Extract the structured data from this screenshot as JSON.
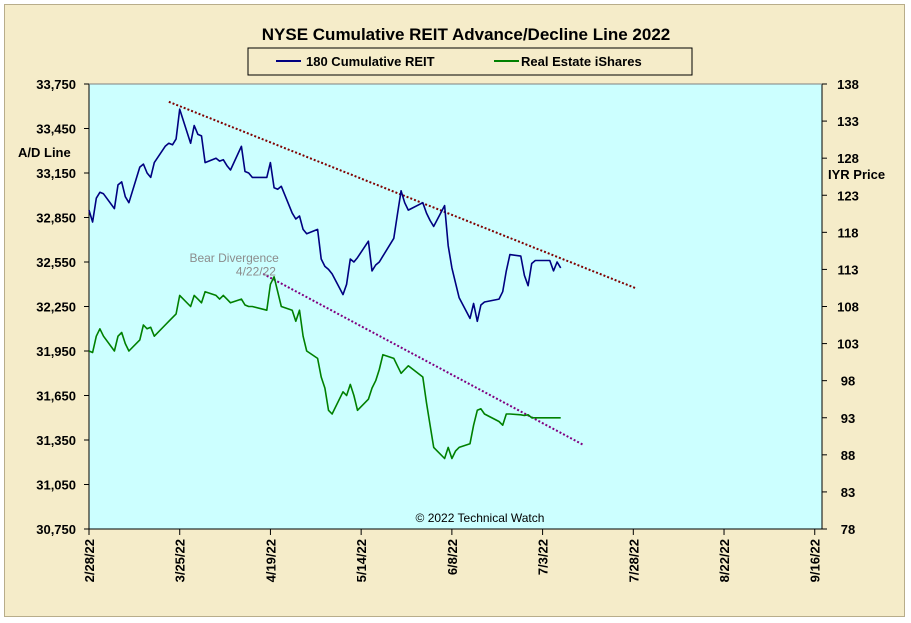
{
  "chart_data": {
    "type": "line",
    "title": "NYSE Cumulative  REIT Advance/Decline Line 2022",
    "ylabel_left": "A/D Line",
    "ylabel_right": "IYR Price",
    "x_tick_labels": [
      "2/28/22",
      "3/25/22",
      "4/19/22",
      "5/14/22",
      "6/8/22",
      "7/3/22",
      "7/28/22",
      "8/22/22",
      "9/16/22"
    ],
    "x_ticks": [
      "2022-02-28",
      "2022-03-25",
      "2022-04-19",
      "2022-05-14",
      "2022-06-08",
      "2022-07-03",
      "2022-07-28",
      "2022-08-22",
      "2022-09-16"
    ],
    "x_range": [
      "2022-02-28",
      "2022-09-18"
    ],
    "y_left_ticks": [
      "33,750",
      "33,450",
      "33,150",
      "32,850",
      "32,550",
      "32,250",
      "31,950",
      "31,650",
      "31,350",
      "31,050",
      "30,750"
    ],
    "y_left_range": [
      30750,
      33750
    ],
    "y_right_ticks": [
      "138",
      "133",
      "128",
      "123",
      "118",
      "113",
      "108",
      "103",
      "98",
      "93",
      "88",
      "83",
      "78"
    ],
    "y_right_range": [
      78,
      138
    ],
    "grid": false,
    "legend_position": "top-center",
    "plot_background": "#ccffff",
    "series": [
      {
        "name": "180 Cumulative REIT",
        "axis": "left",
        "color": "#000080",
        "x": [
          "2022-02-28",
          "2022-03-01",
          "2022-03-02",
          "2022-03-03",
          "2022-03-04",
          "2022-03-07",
          "2022-03-08",
          "2022-03-09",
          "2022-03-10",
          "2022-03-11",
          "2022-03-14",
          "2022-03-15",
          "2022-03-16",
          "2022-03-17",
          "2022-03-18",
          "2022-03-21",
          "2022-03-22",
          "2022-03-23",
          "2022-03-24",
          "2022-03-25",
          "2022-03-28",
          "2022-03-29",
          "2022-03-30",
          "2022-03-31",
          "2022-04-01",
          "2022-04-04",
          "2022-04-05",
          "2022-04-06",
          "2022-04-07",
          "2022-04-08",
          "2022-04-11",
          "2022-04-12",
          "2022-04-13",
          "2022-04-14",
          "2022-04-18",
          "2022-04-19",
          "2022-04-20",
          "2022-04-21",
          "2022-04-22",
          "2022-04-25",
          "2022-04-26",
          "2022-04-27",
          "2022-04-28",
          "2022-04-29",
          "2022-05-02",
          "2022-05-03",
          "2022-05-04",
          "2022-05-05",
          "2022-05-06",
          "2022-05-09",
          "2022-05-10",
          "2022-05-11",
          "2022-05-12",
          "2022-05-13",
          "2022-05-16",
          "2022-05-17",
          "2022-05-18",
          "2022-05-19",
          "2022-05-20",
          "2022-05-23",
          "2022-05-24",
          "2022-05-25",
          "2022-05-26",
          "2022-05-27",
          "2022-05-31",
          "2022-06-01",
          "2022-06-02",
          "2022-06-03",
          "2022-06-06",
          "2022-06-07",
          "2022-06-08",
          "2022-06-09",
          "2022-06-10",
          "2022-06-13",
          "2022-06-14",
          "2022-06-15",
          "2022-06-16",
          "2022-06-17",
          "2022-06-21",
          "2022-06-22",
          "2022-06-23",
          "2022-06-24",
          "2022-06-27",
          "2022-06-28",
          "2022-06-29",
          "2022-06-30",
          "2022-07-01",
          "2022-07-05",
          "2022-07-06",
          "2022-07-07",
          "2022-07-08"
        ],
        "values": [
          32900,
          32820,
          32980,
          33020,
          33010,
          32910,
          33070,
          33090,
          32990,
          32950,
          33190,
          33210,
          33150,
          33120,
          33220,
          33330,
          33350,
          33340,
          33380,
          33580,
          33350,
          33470,
          33410,
          33400,
          33220,
          33250,
          33230,
          33240,
          33200,
          33170,
          33330,
          33160,
          33150,
          33120,
          33120,
          33220,
          33050,
          33040,
          33060,
          32880,
          32840,
          32860,
          32770,
          32740,
          32770,
          32570,
          32520,
          32500,
          32470,
          32330,
          32400,
          32570,
          32550,
          32580,
          32690,
          32490,
          32530,
          32550,
          32590,
          32710,
          32870,
          33030,
          32950,
          32900,
          32950,
          32880,
          32830,
          32790,
          32930,
          32660,
          32510,
          32410,
          32310,
          32170,
          32270,
          32150,
          32260,
          32280,
          32300,
          32350,
          32490,
          32600,
          32590,
          32460,
          32390,
          32540,
          32560,
          32560,
          32490,
          32550,
          32510
        ]
      },
      {
        "name": "Real Estate iShares",
        "axis": "right",
        "color": "#008000",
        "x": [
          "2022-02-28",
          "2022-03-01",
          "2022-03-02",
          "2022-03-03",
          "2022-03-04",
          "2022-03-07",
          "2022-03-08",
          "2022-03-09",
          "2022-03-10",
          "2022-03-11",
          "2022-03-14",
          "2022-03-15",
          "2022-03-16",
          "2022-03-17",
          "2022-03-18",
          "2022-03-21",
          "2022-03-22",
          "2022-03-23",
          "2022-03-24",
          "2022-03-25",
          "2022-03-28",
          "2022-03-29",
          "2022-03-30",
          "2022-03-31",
          "2022-04-01",
          "2022-04-04",
          "2022-04-05",
          "2022-04-06",
          "2022-04-07",
          "2022-04-08",
          "2022-04-11",
          "2022-04-12",
          "2022-04-13",
          "2022-04-14",
          "2022-04-18",
          "2022-04-19",
          "2022-04-20",
          "2022-04-21",
          "2022-04-22",
          "2022-04-25",
          "2022-04-26",
          "2022-04-27",
          "2022-04-28",
          "2022-04-29",
          "2022-05-02",
          "2022-05-03",
          "2022-05-04",
          "2022-05-05",
          "2022-05-06",
          "2022-05-09",
          "2022-05-10",
          "2022-05-11",
          "2022-05-12",
          "2022-05-13",
          "2022-05-16",
          "2022-05-17",
          "2022-05-18",
          "2022-05-19",
          "2022-05-20",
          "2022-05-23",
          "2022-05-24",
          "2022-05-25",
          "2022-05-26",
          "2022-05-27",
          "2022-05-31",
          "2022-06-01",
          "2022-06-02",
          "2022-06-03",
          "2022-06-06",
          "2022-06-07",
          "2022-06-08",
          "2022-06-09",
          "2022-06-10",
          "2022-06-13",
          "2022-06-14",
          "2022-06-15",
          "2022-06-16",
          "2022-06-17",
          "2022-06-21",
          "2022-06-22",
          "2022-06-23",
          "2022-06-24",
          "2022-06-27",
          "2022-06-28",
          "2022-06-29",
          "2022-06-30",
          "2022-07-01",
          "2022-07-05",
          "2022-07-06",
          "2022-07-07",
          "2022-07-08"
        ],
        "values": [
          102.0,
          101.8,
          104.0,
          105.0,
          104.0,
          102.0,
          104.0,
          104.5,
          103.0,
          102.0,
          103.5,
          105.5,
          105.0,
          105.2,
          104.0,
          105.5,
          106.0,
          106.5,
          107.0,
          109.5,
          108.0,
          109.5,
          109.0,
          108.5,
          110.0,
          109.5,
          109.0,
          109.5,
          109.0,
          108.5,
          109.0,
          108.2,
          108.0,
          108.0,
          107.5,
          111.0,
          112.0,
          110.0,
          108.0,
          107.5,
          106.0,
          107.5,
          104.0,
          102.0,
          101.0,
          98.5,
          97.0,
          94.0,
          93.5,
          96.5,
          96.0,
          97.5,
          96.0,
          94.0,
          95.5,
          97.0,
          98.0,
          99.5,
          101.5,
          101.0,
          100.0,
          99.0,
          99.5,
          100.0,
          98.5,
          95.0,
          92.0,
          89.0,
          87.5,
          89.0,
          87.5,
          88.5,
          89.0,
          89.5,
          92.0,
          94.0,
          94.2,
          93.5,
          92.5,
          92.0,
          93.5,
          93.5,
          93.4,
          93.3,
          93.4,
          93.0,
          93.0,
          93.0,
          93.0,
          93.0,
          93.0
        ]
      }
    ],
    "trendlines": [
      {
        "axis": "left",
        "style": "dotted",
        "color": "#800000",
        "x": [
          "2022-03-22",
          "2022-07-29"
        ],
        "values": [
          33630,
          32370
        ]
      },
      {
        "axis": "left",
        "style": "dotted",
        "color": "#800080",
        "x": [
          "2022-04-17",
          "2022-07-14"
        ],
        "values": [
          32470,
          31320
        ]
      }
    ],
    "annotations": [
      {
        "text": "Bear Divergence",
        "x": "2022-04-09",
        "y_left": 32550
      },
      {
        "text": "4/22/22",
        "x": "2022-04-15",
        "y_left": 32460
      }
    ],
    "copyright": "© 2022 Technical  Watch"
  }
}
